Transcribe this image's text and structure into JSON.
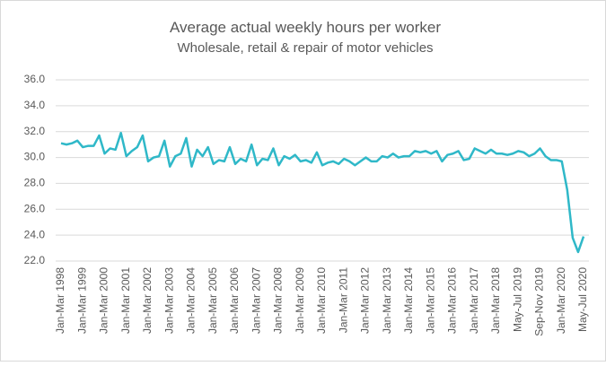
{
  "chart_data": {
    "type": "line",
    "title": "Average actual weekly  hours per worker",
    "subtitle": "Wholesale, retail & repair of motor vehicles",
    "categories": [
      "Jan-Mar 1998",
      null,
      null,
      null,
      "Jan-Mar 1999",
      null,
      null,
      null,
      "Jan-Mar 2000",
      null,
      null,
      null,
      "Jan-Mar 2001",
      null,
      null,
      null,
      "Jan-Mar 2002",
      null,
      null,
      null,
      "Jan-Mar 2003",
      null,
      null,
      null,
      "Jan-Mar 2004",
      null,
      null,
      null,
      "Jan-Mar 2005",
      null,
      null,
      null,
      "Jan-Mar 2006",
      null,
      null,
      null,
      "Jan-Mar 2007",
      null,
      null,
      null,
      "Jan-Mar 2008",
      null,
      null,
      null,
      "Jan-Mar 2009",
      null,
      null,
      null,
      "Jan-Mar 2010",
      null,
      null,
      null,
      "Jan-Mar 2011",
      null,
      null,
      null,
      "Jan-Mar 2012",
      null,
      null,
      null,
      "Jan-Mar 2013",
      null,
      null,
      null,
      "Jan-Mar 2014",
      null,
      null,
      null,
      "Jan-Mar 2015",
      null,
      null,
      null,
      "Jan-Mar 2016",
      null,
      null,
      null,
      "Jan-Mar 2017",
      null,
      null,
      null,
      "Jan-Mar 2018",
      null,
      null,
      null,
      "May-Jul 2019",
      null,
      null,
      null,
      "Sep-Nov 2019",
      null,
      null,
      null,
      "Jan-Mar 2020",
      null,
      null,
      null,
      "May-Jul 2020"
    ],
    "values": [
      31.1,
      31.0,
      31.1,
      31.3,
      30.8,
      30.9,
      30.9,
      31.7,
      30.3,
      30.7,
      30.6,
      31.9,
      30.1,
      30.5,
      30.8,
      31.7,
      29.7,
      30.0,
      30.1,
      31.3,
      29.3,
      30.1,
      30.3,
      31.5,
      29.3,
      30.6,
      30.1,
      30.8,
      29.5,
      29.8,
      29.7,
      30.8,
      29.5,
      29.9,
      29.7,
      31.0,
      29.4,
      29.9,
      29.8,
      30.7,
      29.4,
      30.1,
      29.9,
      30.2,
      29.7,
      29.8,
      29.6,
      30.4,
      29.4,
      29.6,
      29.7,
      29.5,
      29.9,
      29.7,
      29.4,
      29.7,
      30.0,
      29.7,
      29.7,
      30.1,
      30.0,
      30.3,
      30.0,
      30.1,
      30.1,
      30.5,
      30.4,
      30.5,
      30.3,
      30.5,
      29.7,
      30.2,
      30.3,
      30.5,
      29.8,
      29.9,
      30.7,
      30.5,
      30.3,
      30.6,
      30.3,
      30.3,
      30.2,
      30.3,
      30.5,
      30.4,
      30.1,
      30.3,
      30.7,
      30.1,
      29.8,
      29.8,
      29.7,
      27.5,
      23.8,
      22.7,
      23.9
    ],
    "color": "#2fb8c8",
    "ylim": [
      22,
      36
    ],
    "yticks": [
      {
        "value": 22,
        "label": "22.0"
      },
      {
        "value": 24,
        "label": "24.0"
      },
      {
        "value": 26,
        "label": "26.0"
      },
      {
        "value": 28,
        "label": "28.0"
      },
      {
        "value": 30,
        "label": "30.0"
      },
      {
        "value": 32,
        "label": "32.0"
      },
      {
        "value": 34,
        "label": "34.0"
      },
      {
        "value": 36,
        "label": "36.0"
      }
    ],
    "grid": true
  }
}
